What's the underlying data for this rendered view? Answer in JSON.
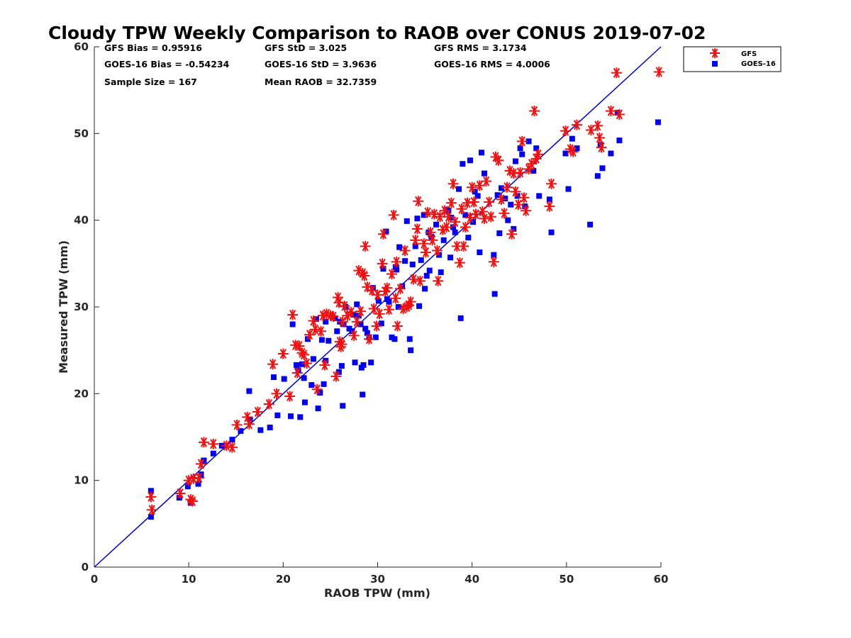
{
  "chart_data": {
    "type": "scatter",
    "title": "Cloudy TPW Weekly Comparison to RAOB over CONUS 2019-07-02",
    "xlabel": "RAOB TPW (mm)",
    "ylabel": "Measured TPW (mm)",
    "xlim": [
      0,
      60
    ],
    "ylim": [
      0,
      60
    ],
    "xticks": [
      0,
      10,
      20,
      30,
      40,
      50,
      60
    ],
    "yticks": [
      0,
      10,
      20,
      30,
      40,
      50,
      60
    ],
    "grid": false,
    "legend_position": "top-right (outside plot)",
    "reference_line": {
      "x": [
        0,
        60
      ],
      "y": [
        0,
        60
      ],
      "color": "#0000cc"
    },
    "stats": [
      [
        "GFS Bias = 0.95916",
        "GFS StD = 3.025",
        "GFS RMS = 3.1734"
      ],
      [
        "GOES-16 Bias = -0.54234",
        "GOES-16 StD = 3.9636",
        "GOES-16 RMS = 4.0006"
      ],
      [
        "Sample Size = 167",
        "Mean RAOB = 32.7359",
        ""
      ]
    ],
    "series": [
      {
        "name": "GFS",
        "marker": "asterisk",
        "color": "#ee1111",
        "points": [
          [
            6.0,
            8.1
          ],
          [
            6.1,
            6.6
          ],
          [
            9.1,
            8.5
          ],
          [
            10.0,
            10.0
          ],
          [
            10.2,
            7.8
          ],
          [
            10.4,
            7.6
          ],
          [
            10.5,
            10.2
          ],
          [
            11.1,
            10.3
          ],
          [
            11.3,
            11.9
          ],
          [
            11.6,
            14.4
          ],
          [
            12.6,
            14.2
          ],
          [
            14.0,
            14.0
          ],
          [
            14.6,
            13.8
          ],
          [
            15.1,
            16.4
          ],
          [
            16.2,
            17.3
          ],
          [
            16.4,
            16.5
          ],
          [
            17.3,
            17.9
          ],
          [
            18.5,
            18.8
          ],
          [
            18.9,
            23.4
          ],
          [
            19.3,
            20.0
          ],
          [
            20.0,
            24.6
          ],
          [
            20.7,
            19.7
          ],
          [
            21.0,
            29.1
          ],
          [
            21.3,
            25.6
          ],
          [
            21.5,
            22.4
          ],
          [
            21.7,
            25.5
          ],
          [
            22.0,
            24.7
          ],
          [
            22.2,
            24.5
          ],
          [
            22.5,
            23.5
          ],
          [
            22.8,
            26.8
          ],
          [
            23.2,
            28.4
          ],
          [
            23.4,
            27.4
          ],
          [
            23.6,
            20.5
          ],
          [
            24.0,
            27.2
          ],
          [
            24.2,
            29.0
          ],
          [
            24.4,
            23.3
          ],
          [
            24.6,
            29.2
          ],
          [
            25.0,
            29.0
          ],
          [
            25.3,
            28.9
          ],
          [
            25.6,
            22.0
          ],
          [
            25.8,
            31.1
          ],
          [
            25.9,
            30.5
          ],
          [
            26.0,
            26.0
          ],
          [
            26.1,
            25.4
          ],
          [
            26.2,
            25.7
          ],
          [
            26.3,
            28.3
          ],
          [
            26.5,
            30.1
          ],
          [
            26.8,
            29.0
          ],
          [
            27.2,
            29.4
          ],
          [
            27.5,
            26.7
          ],
          [
            27.8,
            28.3
          ],
          [
            28.0,
            34.2
          ],
          [
            28.2,
            29.5
          ],
          [
            28.4,
            33.9
          ],
          [
            28.6,
            33.6
          ],
          [
            28.7,
            37.0
          ],
          [
            28.9,
            32.3
          ],
          [
            29.1,
            26.3
          ],
          [
            29.4,
            31.9
          ],
          [
            29.6,
            29.8
          ],
          [
            29.9,
            27.8
          ],
          [
            30.0,
            31.4
          ],
          [
            30.2,
            29.2
          ],
          [
            30.5,
            35.0
          ],
          [
            30.6,
            38.4
          ],
          [
            30.8,
            31.8
          ],
          [
            31.0,
            32.2
          ],
          [
            31.2,
            29.7
          ],
          [
            31.5,
            33.8
          ],
          [
            31.7,
            40.6
          ],
          [
            31.9,
            31.0
          ],
          [
            32.0,
            35.2
          ],
          [
            32.1,
            27.8
          ],
          [
            32.4,
            32.1
          ],
          [
            32.7,
            29.8
          ],
          [
            32.9,
            36.5
          ],
          [
            33.1,
            30.0
          ],
          [
            33.3,
            30.2
          ],
          [
            33.5,
            30.6
          ],
          [
            33.8,
            33.2
          ],
          [
            34.0,
            37.7
          ],
          [
            34.2,
            39.0
          ],
          [
            34.3,
            42.2
          ],
          [
            34.5,
            33.0
          ],
          [
            34.9,
            37.3
          ],
          [
            35.1,
            36.3
          ],
          [
            35.3,
            40.9
          ],
          [
            35.6,
            38.6
          ],
          [
            35.8,
            37.7
          ],
          [
            36.0,
            40.7
          ],
          [
            36.3,
            36.5
          ],
          [
            36.4,
            33.0
          ],
          [
            36.6,
            40.4
          ],
          [
            36.9,
            38.9
          ],
          [
            37.1,
            41.1
          ],
          [
            37.3,
            39.2
          ],
          [
            37.5,
            40.4
          ],
          [
            37.8,
            42.0
          ],
          [
            38.0,
            44.2
          ],
          [
            38.2,
            39.8
          ],
          [
            38.4,
            37.0
          ],
          [
            38.7,
            35.1
          ],
          [
            38.9,
            41.3
          ],
          [
            39.1,
            37.0
          ],
          [
            39.3,
            39.2
          ],
          [
            39.5,
            42.0
          ],
          [
            39.8,
            40.3
          ],
          [
            40.0,
            43.8
          ],
          [
            40.2,
            42.1
          ],
          [
            40.4,
            40.7
          ],
          [
            40.8,
            44.0
          ],
          [
            41.1,
            41.0
          ],
          [
            41.3,
            40.2
          ],
          [
            41.5,
            44.5
          ],
          [
            41.8,
            42.1
          ],
          [
            42.0,
            40.4
          ],
          [
            42.3,
            35.2
          ],
          [
            42.5,
            47.3
          ],
          [
            42.8,
            46.9
          ],
          [
            43.1,
            42.4
          ],
          [
            43.4,
            40.8
          ],
          [
            43.7,
            43.8
          ],
          [
            44.0,
            45.7
          ],
          [
            44.2,
            38.4
          ],
          [
            44.4,
            45.4
          ],
          [
            44.6,
            43.3
          ],
          [
            44.9,
            41.8
          ],
          [
            45.1,
            45.5
          ],
          [
            45.3,
            49.1
          ],
          [
            45.5,
            42.6
          ],
          [
            45.7,
            41.1
          ],
          [
            46.0,
            45.9
          ],
          [
            46.3,
            46.5
          ],
          [
            46.6,
            52.6
          ],
          [
            46.8,
            47.1
          ],
          [
            47.0,
            47.6
          ],
          [
            48.2,
            41.6
          ],
          [
            48.4,
            44.2
          ],
          [
            49.9,
            50.3
          ],
          [
            50.4,
            48.2
          ],
          [
            50.7,
            47.9
          ],
          [
            51.1,
            51.0
          ],
          [
            52.6,
            50.4
          ],
          [
            53.3,
            50.9
          ],
          [
            53.5,
            49.5
          ],
          [
            53.7,
            48.4
          ],
          [
            54.7,
            52.6
          ],
          [
            55.3,
            57.0
          ],
          [
            55.6,
            52.2
          ],
          [
            59.8,
            57.1
          ]
        ]
      },
      {
        "name": "GOES-16",
        "marker": "square",
        "color": "#0000ee",
        "points": [
          [
            6.0,
            8.8
          ],
          [
            6.0,
            5.8
          ],
          [
            9.0,
            8.0
          ],
          [
            9.9,
            9.3
          ],
          [
            10.2,
            7.4
          ],
          [
            11.0,
            9.6
          ],
          [
            11.3,
            10.7
          ],
          [
            11.6,
            12.3
          ],
          [
            12.6,
            13.1
          ],
          [
            13.5,
            14.0
          ],
          [
            14.6,
            14.7
          ],
          [
            15.5,
            15.7
          ],
          [
            16.4,
            20.3
          ],
          [
            16.5,
            17.0
          ],
          [
            17.6,
            15.8
          ],
          [
            18.6,
            16.1
          ],
          [
            19.0,
            21.9
          ],
          [
            19.4,
            17.5
          ],
          [
            20.1,
            21.7
          ],
          [
            20.8,
            17.4
          ],
          [
            21.0,
            28.0
          ],
          [
            21.4,
            23.3
          ],
          [
            21.6,
            22.7
          ],
          [
            21.8,
            17.3
          ],
          [
            22.0,
            23.4
          ],
          [
            22.2,
            21.8
          ],
          [
            22.3,
            19.0
          ],
          [
            22.6,
            26.3
          ],
          [
            23.0,
            21.0
          ],
          [
            23.2,
            24.0
          ],
          [
            23.5,
            28.6
          ],
          [
            23.7,
            18.3
          ],
          [
            23.9,
            20.1
          ],
          [
            24.1,
            26.2
          ],
          [
            24.3,
            21.1
          ],
          [
            24.5,
            23.8
          ],
          [
            24.8,
            26.1
          ],
          [
            25.5,
            28.7
          ],
          [
            25.7,
            27.2
          ],
          [
            25.9,
            22.5
          ],
          [
            26.0,
            28.3
          ],
          [
            26.2,
            23.2
          ],
          [
            26.3,
            18.6
          ],
          [
            26.4,
            28.0
          ],
          [
            26.6,
            30.0
          ],
          [
            27.0,
            27.5
          ],
          [
            27.3,
            27.2
          ],
          [
            27.6,
            23.6
          ],
          [
            27.8,
            30.3
          ],
          [
            28.0,
            29.0
          ],
          [
            28.2,
            28.0
          ],
          [
            28.3,
            23.0
          ],
          [
            28.4,
            19.9
          ],
          [
            28.5,
            23.3
          ],
          [
            28.7,
            27.5
          ],
          [
            28.9,
            27.0
          ],
          [
            29.1,
            26.5
          ],
          [
            29.3,
            23.6
          ],
          [
            29.5,
            32.2
          ],
          [
            29.8,
            26.5
          ],
          [
            30.1,
            30.7
          ],
          [
            30.4,
            28.1
          ],
          [
            30.6,
            34.4
          ],
          [
            30.9,
            38.7
          ],
          [
            31.0,
            30.9
          ],
          [
            31.2,
            30.6
          ],
          [
            31.5,
            26.5
          ],
          [
            31.8,
            26.3
          ],
          [
            31.9,
            34.6
          ],
          [
            32.0,
            34.3
          ],
          [
            32.2,
            30.0
          ],
          [
            32.3,
            36.9
          ],
          [
            32.6,
            32.4
          ],
          [
            32.9,
            35.3
          ],
          [
            33.1,
            39.9
          ],
          [
            33.4,
            26.3
          ],
          [
            33.5,
            25.0
          ],
          [
            33.7,
            34.9
          ],
          [
            34.0,
            37.0
          ],
          [
            34.2,
            40.2
          ],
          [
            34.4,
            30.1
          ],
          [
            34.6,
            35.4
          ],
          [
            34.9,
            40.6
          ],
          [
            35.0,
            32.1
          ],
          [
            35.2,
            33.6
          ],
          [
            35.5,
            34.2
          ],
          [
            35.7,
            38.1
          ],
          [
            36.2,
            39.5
          ],
          [
            36.5,
            36.0
          ],
          [
            36.7,
            34.0
          ],
          [
            37.0,
            37.7
          ],
          [
            37.3,
            41.2
          ],
          [
            37.5,
            41.1
          ],
          [
            37.7,
            35.7
          ],
          [
            37.8,
            40.3
          ],
          [
            38.0,
            39.2
          ],
          [
            38.2,
            38.6
          ],
          [
            38.6,
            43.6
          ],
          [
            38.8,
            28.7
          ],
          [
            39.0,
            46.5
          ],
          [
            39.3,
            40.6
          ],
          [
            39.6,
            38.0
          ],
          [
            39.8,
            46.9
          ],
          [
            40.1,
            39.8
          ],
          [
            40.3,
            43.3
          ],
          [
            40.6,
            42.8
          ],
          [
            40.8,
            36.3
          ],
          [
            41.0,
            47.8
          ],
          [
            41.3,
            45.4
          ],
          [
            42.3,
            36.0
          ],
          [
            42.4,
            31.5
          ],
          [
            42.7,
            42.9
          ],
          [
            42.9,
            38.5
          ],
          [
            43.1,
            43.7
          ],
          [
            43.5,
            42.5
          ],
          [
            43.8,
            40.0
          ],
          [
            44.1,
            41.8
          ],
          [
            44.4,
            39.0
          ],
          [
            44.6,
            46.8
          ],
          [
            44.8,
            42.8
          ],
          [
            45.1,
            48.3
          ],
          [
            45.3,
            47.6
          ],
          [
            45.6,
            41.6
          ],
          [
            46.0,
            49.1
          ],
          [
            46.5,
            45.7
          ],
          [
            46.8,
            48.3
          ],
          [
            47.1,
            42.8
          ],
          [
            48.2,
            42.4
          ],
          [
            48.4,
            38.6
          ],
          [
            49.9,
            47.7
          ],
          [
            50.2,
            43.6
          ],
          [
            50.6,
            49.4
          ],
          [
            51.1,
            48.3
          ],
          [
            52.5,
            39.5
          ],
          [
            53.3,
            45.1
          ],
          [
            53.6,
            48.7
          ],
          [
            53.8,
            46.0
          ],
          [
            54.7,
            47.7
          ],
          [
            55.4,
            52.4
          ],
          [
            55.6,
            49.2
          ],
          [
            59.7,
            51.3
          ],
          [
            24.5,
            28.3
          ],
          [
            27.4,
            29.1
          ],
          [
            35.4,
            38.6
          ]
        ]
      }
    ]
  }
}
